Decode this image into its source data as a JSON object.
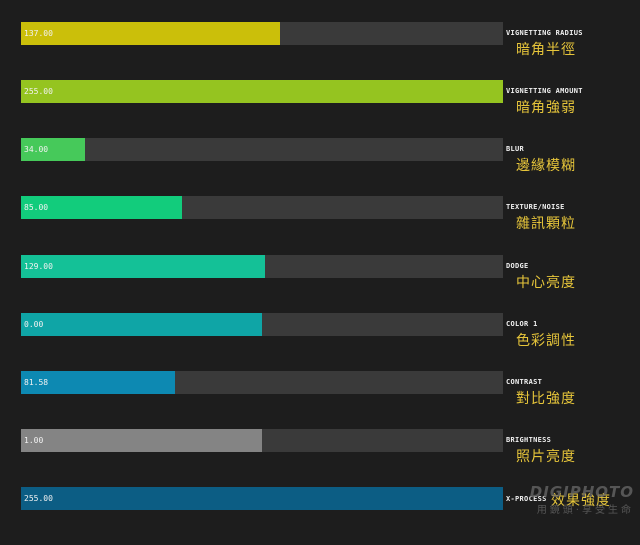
{
  "sliders": [
    {
      "value_text": "137.00",
      "label_en": "VIGNETTING RADIUS",
      "label_zh": "暗角半徑",
      "fill_fraction": 0.537,
      "color": "#cbbf0a"
    },
    {
      "value_text": "255.00",
      "label_en": "VIGNETTING AMOUNT",
      "label_zh": "暗角強弱",
      "fill_fraction": 1.0,
      "color": "#95c420"
    },
    {
      "value_text": "34.00",
      "label_en": "BLUR",
      "label_zh": "邊緣模糊",
      "fill_fraction": 0.133,
      "color": "#46c95a"
    },
    {
      "value_text": "85.00",
      "label_en": "TEXTURE/NOISE",
      "label_zh": "雜訊顆粒",
      "fill_fraction": 0.333,
      "color": "#12cc7c"
    },
    {
      "value_text": "129.00",
      "label_en": "DODGE",
      "label_zh": "中心亮度",
      "fill_fraction": 0.506,
      "color": "#14c197"
    },
    {
      "value_text": "0.00",
      "label_en": "COLOR 1",
      "label_zh": "色彩調性",
      "fill_fraction": 0.5,
      "color": "#0fa5a6"
    },
    {
      "value_text": "81.58",
      "label_en": "CONTRAST",
      "label_zh": "對比強度",
      "fill_fraction": 0.32,
      "color": "#0d89b2"
    },
    {
      "value_text": "1.00",
      "label_en": "BRIGHTNESS",
      "label_zh": "照片亮度",
      "fill_fraction": 0.5,
      "color": "#848484"
    },
    {
      "value_text": "255.00",
      "label_en": "X-PROCESS",
      "label_zh": "效果強度",
      "fill_fraction": 1.0,
      "color": "#0c5d84"
    }
  ],
  "watermark": {
    "main": "DIGIPHOTO",
    "sub": "用鏡頭‧享受生命"
  }
}
